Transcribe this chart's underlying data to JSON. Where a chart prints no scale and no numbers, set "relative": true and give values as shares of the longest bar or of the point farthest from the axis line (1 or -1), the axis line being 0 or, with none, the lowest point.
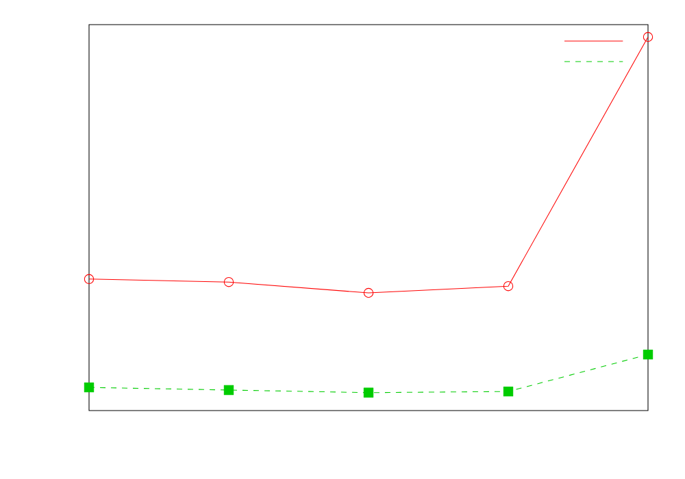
{
  "chart_data": {
    "type": "line",
    "relative": true,
    "categories": [
      null,
      null,
      null,
      null,
      null
    ],
    "series": [
      {
        "color": "#ff0000",
        "marker": "circle",
        "line_style": "solid",
        "values": [
          0.352,
          0.344,
          0.315,
          0.333,
          1
        ]
      },
      {
        "color": "#00cc00",
        "marker": "square",
        "line_style": "dashed",
        "values": [
          0.062,
          0.055,
          0.048,
          0.051,
          0.15
        ]
      }
    ]
  }
}
